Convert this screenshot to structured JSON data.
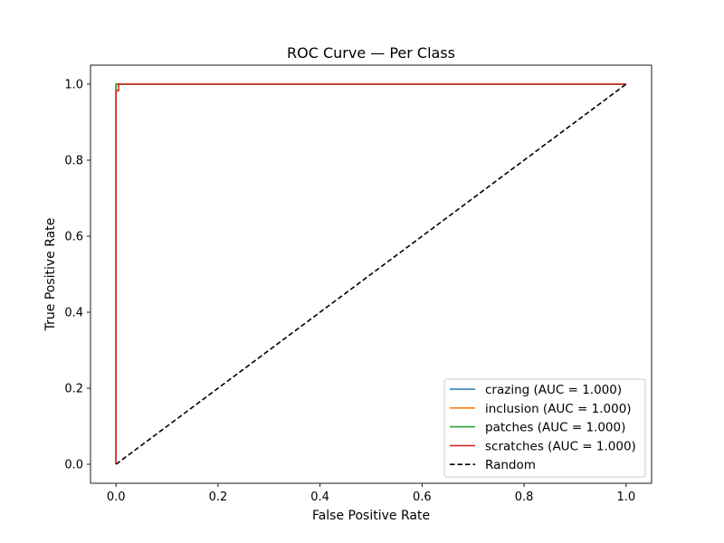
{
  "chart_data": {
    "type": "line",
    "title": "ROC Curve — Per Class",
    "xlabel": "False Positive Rate",
    "ylabel": "True Positive Rate",
    "xlim": [
      -0.05,
      1.05
    ],
    "ylim": [
      -0.05,
      1.05
    ],
    "xticks": [
      "0.0",
      "0.2",
      "0.4",
      "0.6",
      "0.8",
      "1.0"
    ],
    "yticks": [
      "0.0",
      "0.2",
      "0.4",
      "0.6",
      "0.8",
      "1.0"
    ],
    "grid": false,
    "legend_position": "lower right",
    "series": [
      {
        "name": "crazing (AUC = 1.000)",
        "color": "#1f77b4",
        "dash": false,
        "x": [
          0.0,
          0.0,
          1.0
        ],
        "y": [
          0.0,
          1.0,
          1.0
        ]
      },
      {
        "name": "inclusion (AUC = 1.000)",
        "color": "#ff7f0e",
        "dash": false,
        "x": [
          0.0,
          0.0,
          1.0
        ],
        "y": [
          0.0,
          1.0,
          1.0
        ]
      },
      {
        "name": "patches (AUC = 1.000)",
        "color": "#2ca02c",
        "dash": false,
        "x": [
          0.0,
          0.0,
          0.006,
          1.0
        ],
        "y": [
          0.0,
          1.0,
          1.0,
          1.0
        ]
      },
      {
        "name": "scratches (AUC = 1.000)",
        "color": "#d62728",
        "dash": false,
        "x": [
          0.0,
          0.0,
          0.005,
          0.005,
          1.0
        ],
        "y": [
          0.0,
          0.983,
          0.983,
          1.0,
          1.0
        ]
      },
      {
        "name": "Random",
        "color": "#000000",
        "dash": true,
        "x": [
          0.0,
          1.0
        ],
        "y": [
          0.0,
          1.0
        ]
      }
    ]
  }
}
